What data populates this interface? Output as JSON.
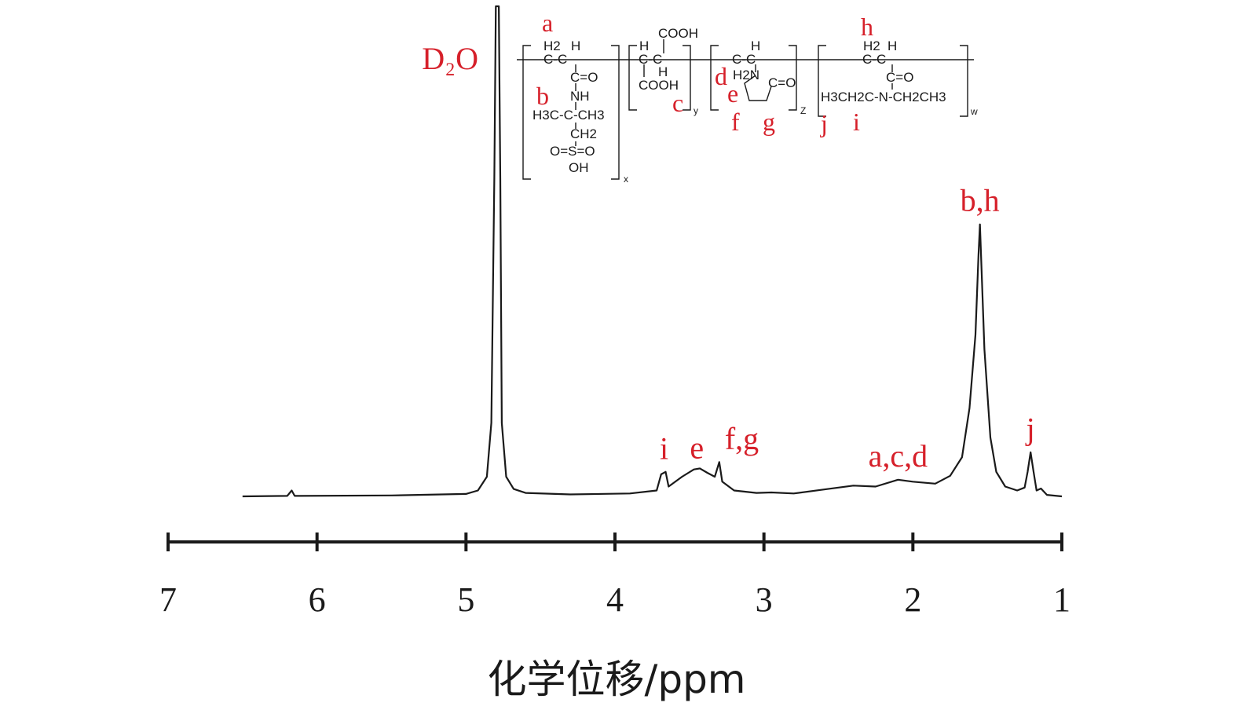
{
  "chart_data": {
    "type": "line",
    "title": "",
    "xlabel": "化学位移/ppm",
    "ylabel": "",
    "xlim": [
      7,
      1
    ],
    "x_reversed": true,
    "x_ticks": [
      7,
      6,
      5,
      4,
      3,
      2,
      1
    ],
    "tick_labels": [
      "7",
      "6",
      "5",
      "4",
      "3",
      "2",
      "1"
    ],
    "grid": false,
    "series": [
      {
        "points": [
          [
            6.5,
            0.0
          ],
          [
            6.2,
            0.001
          ],
          [
            6.17,
            0.012
          ],
          [
            6.15,
            0.001
          ],
          [
            5.5,
            0.002
          ],
          [
            5.0,
            0.005
          ],
          [
            4.92,
            0.012
          ],
          [
            4.86,
            0.04
          ],
          [
            4.83,
            0.15
          ],
          [
            4.81,
            0.65
          ],
          [
            4.8,
            1.0
          ],
          [
            4.78,
            1.0
          ],
          [
            4.77,
            0.65
          ],
          [
            4.76,
            0.15
          ],
          [
            4.73,
            0.04
          ],
          [
            4.68,
            0.015
          ],
          [
            4.6,
            0.007
          ],
          [
            4.3,
            0.004
          ],
          [
            3.9,
            0.006
          ],
          [
            3.72,
            0.012
          ],
          [
            3.69,
            0.045
          ],
          [
            3.66,
            0.05
          ],
          [
            3.64,
            0.02
          ],
          [
            3.55,
            0.04
          ],
          [
            3.47,
            0.055
          ],
          [
            3.43,
            0.057
          ],
          [
            3.38,
            0.048
          ],
          [
            3.33,
            0.04
          ],
          [
            3.3,
            0.07
          ],
          [
            3.28,
            0.03
          ],
          [
            3.2,
            0.012
          ],
          [
            3.05,
            0.007
          ],
          [
            2.95,
            0.008
          ],
          [
            2.8,
            0.006
          ],
          [
            2.6,
            0.014
          ],
          [
            2.4,
            0.022
          ],
          [
            2.25,
            0.02
          ],
          [
            2.1,
            0.034
          ],
          [
            2.0,
            0.03
          ],
          [
            1.85,
            0.026
          ],
          [
            1.75,
            0.042
          ],
          [
            1.67,
            0.08
          ],
          [
            1.62,
            0.18
          ],
          [
            1.58,
            0.33
          ],
          [
            1.56,
            0.49
          ],
          [
            1.55,
            0.555
          ],
          [
            1.54,
            0.47
          ],
          [
            1.52,
            0.3
          ],
          [
            1.48,
            0.12
          ],
          [
            1.44,
            0.05
          ],
          [
            1.38,
            0.02
          ],
          [
            1.3,
            0.012
          ],
          [
            1.25,
            0.018
          ],
          [
            1.23,
            0.05
          ],
          [
            1.21,
            0.09
          ],
          [
            1.19,
            0.05
          ],
          [
            1.17,
            0.012
          ],
          [
            1.14,
            0.016
          ],
          [
            1.1,
            0.003
          ],
          [
            1.0,
            0.0
          ]
        ]
      }
    ],
    "annotations": [
      {
        "text": "D₂O",
        "x": 4.79,
        "y": 1.0
      },
      {
        "text": "i",
        "x": 3.67,
        "y": 0.06
      },
      {
        "text": "e",
        "x": 3.45,
        "y": 0.062
      },
      {
        "text": "f,g",
        "x": 3.18,
        "y": 0.08
      },
      {
        "text": "a,c,d",
        "x": 2.1,
        "y": 0.045
      },
      {
        "text": "b,h",
        "x": 1.55,
        "y": 0.57
      },
      {
        "text": "j",
        "x": 1.21,
        "y": 0.1
      }
    ]
  },
  "structure": {
    "atoms": {
      "a": "a",
      "b": "b",
      "c": "c",
      "d": "d",
      "e": "e",
      "f": "f",
      "g": "g",
      "h": "h",
      "i": "i",
      "j": "j"
    },
    "subscripts": {
      "x": "x",
      "y": "y",
      "z": "Z",
      "w": "w"
    },
    "unit1": {
      "h2": "H2",
      "h": "H",
      "cc": "C-C",
      "co": "C=O",
      "nh": "NH",
      "tbu": "H3C-C-CH3",
      "ch2": "CH2",
      "so3": "O=S=O",
      "oh": "OH"
    },
    "unit2": {
      "cooh_top": "COOH",
      "h": "H",
      "cc": "C-C",
      "h_bottom": "H",
      "cooh_bottom": "COOH"
    },
    "unit3": {
      "h": "H",
      "cc": "C-C",
      "h2n": "H2N",
      "co": "C=O"
    },
    "unit4": {
      "h2": "H2",
      "h": "H",
      "cc": "C-C",
      "co": "C=O",
      "amide": "H3CH2C-N-CH2CH3"
    }
  }
}
